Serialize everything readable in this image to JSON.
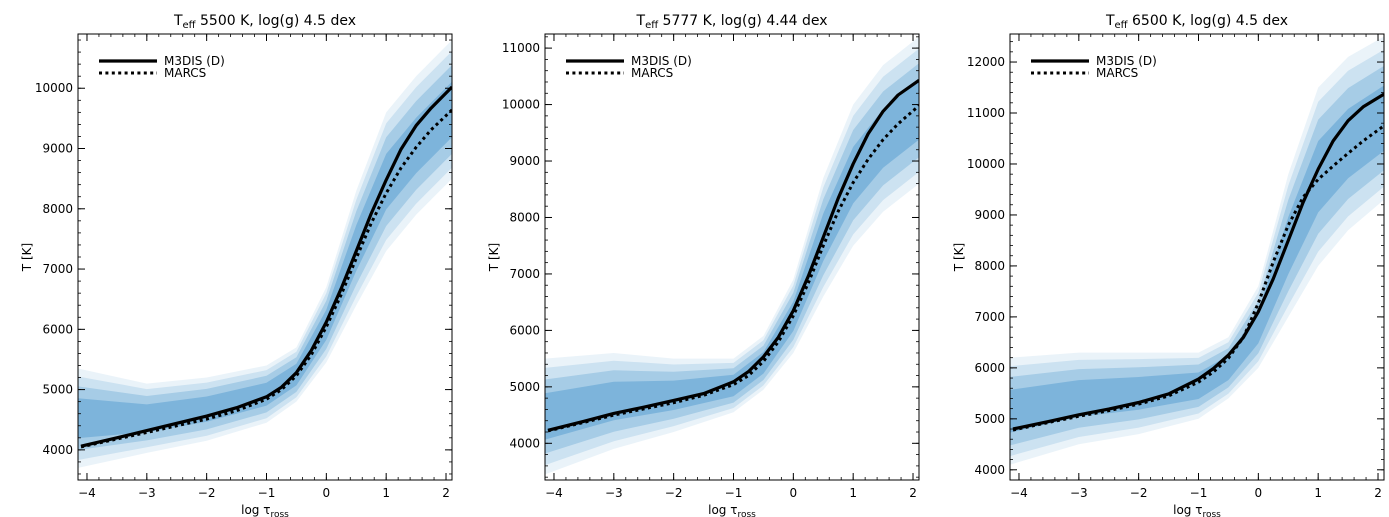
{
  "chart_data": [
    {
      "type": "line",
      "title": {
        "main": "T",
        "sub": "eff",
        "rest": " 5500 K, log(g) 4.5 dex"
      },
      "xlabel": {
        "main": "log τ",
        "sub": "ross"
      },
      "ylabel": "T [K]",
      "xlim": [
        -4.15,
        2.1
      ],
      "ylim": [
        3500,
        10900
      ],
      "xticks": [
        -4,
        -3,
        -2,
        -1,
        0,
        1,
        2
      ],
      "xtick_labels": [
        "−4",
        "−3",
        "−2",
        "−1",
        "0",
        "1",
        "2"
      ],
      "yticks": [
        4000,
        5000,
        6000,
        7000,
        8000,
        9000,
        10000
      ],
      "ytick_labels": [
        "4000",
        "5000",
        "6000",
        "7000",
        "8000",
        "9000",
        "10000"
      ],
      "legend": {
        "position": "top-left"
      },
      "cloud_color": "#2f86c6",
      "cloud": {
        "x": [
          -4.15,
          -3,
          -2,
          -1,
          -0.5,
          0,
          0.5,
          1,
          1.5,
          2.1
        ],
        "lo": [
          3700,
          3950,
          4150,
          4450,
          4800,
          5450,
          6400,
          7300,
          7900,
          8500
        ],
        "hi": [
          5350,
          5100,
          5200,
          5400,
          5700,
          6700,
          8300,
          9600,
          10200,
          10800
        ]
      },
      "series": [
        {
          "name": "M3DIS (D)",
          "style": "solid",
          "color": "#000000",
          "x": [
            -4.1,
            -3.5,
            -3,
            -2.5,
            -2,
            -1.5,
            -1,
            -0.75,
            -0.5,
            -0.25,
            0,
            0.25,
            0.5,
            0.75,
            1,
            1.25,
            1.5,
            1.75,
            2.1
          ],
          "y": [
            4060,
            4200,
            4320,
            4440,
            4560,
            4700,
            4880,
            5040,
            5280,
            5650,
            6120,
            6680,
            7300,
            7920,
            8480,
            8990,
            9380,
            9670,
            10020
          ]
        },
        {
          "name": "MARCS",
          "style": "dotted",
          "color": "#000000",
          "x": [
            -4.1,
            -3.5,
            -3,
            -2.5,
            -2,
            -1.5,
            -1,
            -0.75,
            -0.5,
            -0.25,
            0,
            0.25,
            0.5,
            0.75,
            1,
            1.25,
            1.5,
            1.75,
            2.1
          ],
          "y": [
            4050,
            4180,
            4290,
            4400,
            4510,
            4650,
            4840,
            5000,
            5230,
            5580,
            6040,
            6580,
            7180,
            7760,
            8260,
            8680,
            9020,
            9310,
            9640
          ]
        }
      ]
    },
    {
      "type": "line",
      "title": {
        "main": "T",
        "sub": "eff",
        "rest": " 5777 K, log(g) 4.44 dex"
      },
      "xlabel": {
        "main": "log τ",
        "sub": "ross"
      },
      "ylabel": "T [K]",
      "xlim": [
        -4.15,
        2.1
      ],
      "ylim": [
        3350,
        11250
      ],
      "xticks": [
        -4,
        -3,
        -2,
        -1,
        0,
        1,
        2
      ],
      "xtick_labels": [
        "−4",
        "−3",
        "−2",
        "−1",
        "0",
        "1",
        "2"
      ],
      "yticks": [
        4000,
        5000,
        6000,
        7000,
        8000,
        9000,
        10000,
        11000
      ],
      "ytick_labels": [
        "4000",
        "5000",
        "6000",
        "7000",
        "8000",
        "9000",
        "10000",
        "11000"
      ],
      "legend": {
        "position": "top-left"
      },
      "cloud_color": "#2f86c6",
      "cloud": {
        "x": [
          -4.15,
          -3,
          -2,
          -1,
          -0.5,
          0,
          0.5,
          1,
          1.5,
          2.1
        ],
        "lo": [
          3450,
          3900,
          4200,
          4550,
          4950,
          5600,
          6600,
          7500,
          8100,
          8600
        ],
        "hi": [
          5500,
          5600,
          5500,
          5500,
          5900,
          6900,
          8700,
          10000,
          10700,
          11200
        ]
      },
      "series": [
        {
          "name": "M3DIS (D)",
          "style": "solid",
          "color": "#000000",
          "x": [
            -4.1,
            -3.5,
            -3,
            -2.5,
            -2,
            -1.5,
            -1,
            -0.75,
            -0.5,
            -0.25,
            0,
            0.25,
            0.5,
            0.75,
            1,
            1.25,
            1.5,
            1.75,
            2.1
          ],
          "y": [
            4230,
            4390,
            4530,
            4640,
            4760,
            4880,
            5090,
            5270,
            5530,
            5880,
            6350,
            6960,
            7650,
            8340,
            8950,
            9480,
            9880,
            10170,
            10430
          ]
        },
        {
          "name": "MARCS",
          "style": "dotted",
          "color": "#000000",
          "x": [
            -4.1,
            -3.5,
            -3,
            -2.5,
            -2,
            -1.5,
            -1,
            -0.75,
            -0.5,
            -0.25,
            0,
            0.25,
            0.5,
            0.75,
            1,
            1.25,
            1.5,
            1.75,
            2.1
          ],
          "y": [
            4220,
            4370,
            4500,
            4610,
            4720,
            4850,
            5040,
            5200,
            5450,
            5800,
            6260,
            6840,
            7500,
            8110,
            8620,
            9030,
            9380,
            9660,
            9980
          ]
        }
      ]
    },
    {
      "type": "line",
      "title": {
        "main": "T",
        "sub": "eff",
        "rest": " 6500 K, log(g) 4.5 dex"
      },
      "xlabel": {
        "main": "log τ",
        "sub": "ross"
      },
      "ylabel": "T [K]",
      "xlim": [
        -4.15,
        2.1
      ],
      "ylim": [
        3800,
        12550
      ],
      "xticks": [
        -4,
        -3,
        -2,
        -1,
        0,
        1,
        2
      ],
      "xtick_labels": [
        "−4",
        "−3",
        "−2",
        "−1",
        "0",
        "1",
        "2"
      ],
      "yticks": [
        4000,
        5000,
        6000,
        7000,
        8000,
        9000,
        10000,
        11000,
        12000
      ],
      "ytick_labels": [
        "4000",
        "5000",
        "6000",
        "7000",
        "8000",
        "9000",
        "10000",
        "11000",
        "12000"
      ],
      "legend": {
        "position": "top-left"
      },
      "cloud_color": "#2f86c6",
      "cloud": {
        "x": [
          -4.15,
          -3,
          -2,
          -1,
          -0.5,
          0,
          0.5,
          1,
          1.5,
          2.1
        ],
        "lo": [
          4100,
          4500,
          4700,
          5000,
          5400,
          6000,
          7000,
          8000,
          8700,
          9300
        ],
        "hi": [
          6200,
          6300,
          6300,
          6300,
          6600,
          7600,
          9800,
          11500,
          12100,
          12500
        ]
      },
      "series": [
        {
          "name": "M3DIS (D)",
          "style": "solid",
          "color": "#000000",
          "x": [
            -4.1,
            -3.5,
            -3,
            -2.5,
            -2,
            -1.5,
            -1,
            -0.75,
            -0.5,
            -0.25,
            0,
            0.25,
            0.5,
            0.75,
            1,
            1.25,
            1.5,
            1.75,
            2.1
          ],
          "y": [
            4800,
            4950,
            5080,
            5190,
            5320,
            5490,
            5780,
            5990,
            6250,
            6600,
            7100,
            7750,
            8500,
            9250,
            9900,
            10450,
            10850,
            11120,
            11370
          ]
        },
        {
          "name": "MARCS",
          "style": "dotted",
          "color": "#000000",
          "x": [
            -4.1,
            -3.5,
            -3,
            -2.5,
            -2,
            -1.5,
            -1,
            -0.75,
            -0.5,
            -0.25,
            0,
            0.25,
            0.5,
            0.75,
            1,
            1.25,
            1.5,
            1.75,
            2.1
          ],
          "y": [
            4780,
            4930,
            5050,
            5160,
            5290,
            5450,
            5720,
            5920,
            6190,
            6600,
            7270,
            8080,
            8800,
            9350,
            9700,
            9960,
            10210,
            10450,
            10750
          ]
        }
      ]
    }
  ]
}
